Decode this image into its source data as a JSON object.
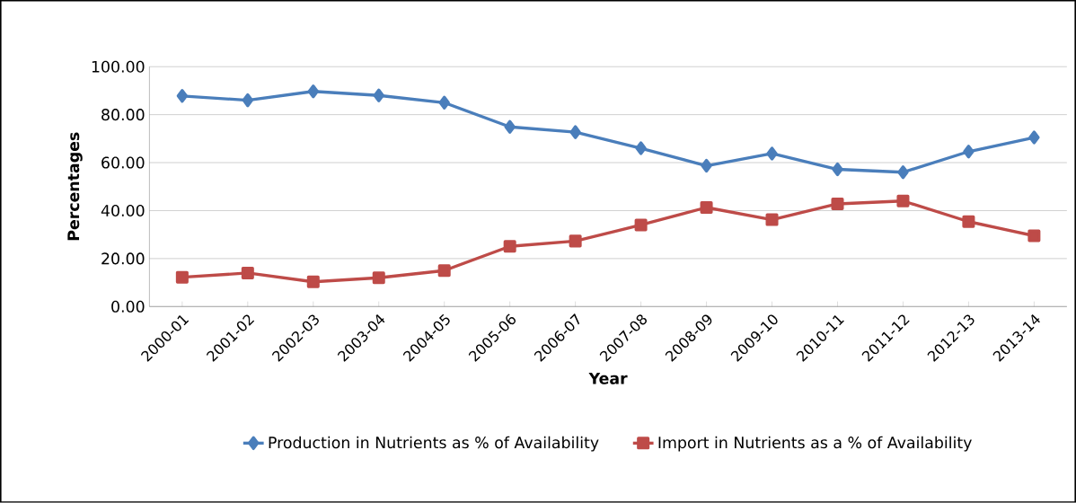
{
  "chart_data": {
    "type": "line",
    "xlabel": "Year",
    "ylabel": "Percentages",
    "categories": [
      "2000-01",
      "2001-02",
      "2002-03",
      "2003-04",
      "2004-05",
      "2005-06",
      "2006-07",
      "2007-08",
      "2008-09",
      "2009-10",
      "2010-11",
      "2011-12",
      "2012-13",
      "2013-14"
    ],
    "series": [
      {
        "name": "Production in Nutrients as % of Availability",
        "color": "#4a7ebb",
        "marker": "diamond",
        "values": [
          87.8,
          86,
          89.7,
          88,
          85,
          74.9,
          72.7,
          66,
          58.7,
          63.8,
          57.2,
          56,
          64.6,
          70.5
        ]
      },
      {
        "name": "Import in Nutrients as a % of Availability",
        "color": "#be4b48",
        "marker": "square",
        "values": [
          12.2,
          14,
          10.3,
          12,
          15,
          25.1,
          27.3,
          34,
          41.3,
          36.2,
          42.8,
          44,
          35.4,
          29.5
        ]
      }
    ],
    "ylim": [
      0,
      100
    ],
    "yticks": [
      {
        "value": 0,
        "label": "0.00"
      },
      {
        "value": 20,
        "label": "20.00"
      },
      {
        "value": 40,
        "label": "40.00"
      },
      {
        "value": 60,
        "label": "60.00"
      },
      {
        "value": 80,
        "label": "80.00"
      },
      {
        "value": 100,
        "label": "100.00"
      }
    ],
    "grid": "y",
    "legend": "bottom"
  }
}
